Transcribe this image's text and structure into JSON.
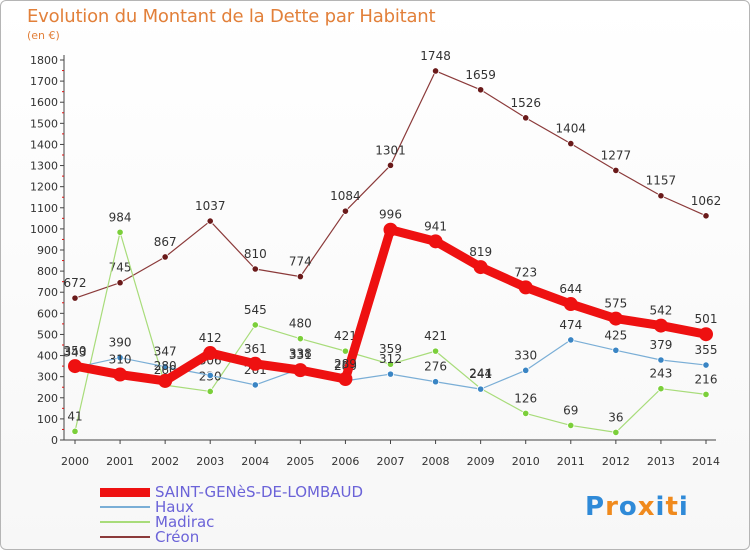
{
  "title": "Evolution du Montant de la Dette par Habitant",
  "unit": "(en €)",
  "logo": {
    "text": "Proxiti",
    "colors": [
      "#2f8ad8",
      "#f08a1d",
      "#2f8ad8",
      "#f08a1d",
      "#2f8ad8",
      "#f08a1d",
      "#2f8ad8"
    ]
  },
  "chart_data": {
    "type": "line",
    "x": [
      "2000",
      "2001",
      "2002",
      "2003",
      "2004",
      "2005",
      "2006",
      "2007",
      "2008",
      "2009",
      "2010",
      "2011",
      "2012",
      "2013",
      "2014"
    ],
    "ylim": [
      0,
      1800
    ],
    "yticks": [
      0,
      100,
      200,
      300,
      400,
      500,
      600,
      700,
      800,
      900,
      1000,
      1100,
      1200,
      1300,
      1400,
      1500,
      1600,
      1700,
      1800
    ],
    "grid": false,
    "legend_position": "bottom-left",
    "series": [
      {
        "name": "Créon",
        "color": "#8b3a3a",
        "marker": "#6a1a1a",
        "width": 1.2,
        "values": [
          672,
          745,
          867,
          1037,
          810,
          774,
          1084,
          1301,
          1748,
          1659,
          1526,
          1404,
          1277,
          1157,
          1062
        ]
      },
      {
        "name": "Madirac",
        "color": "#a8dc7a",
        "marker": "#7bcf3a",
        "width": 1.2,
        "values": [
          41,
          984,
          260,
          230,
          545,
          480,
          421,
          359,
          421,
          244,
          126,
          69,
          36,
          243,
          216
        ]
      },
      {
        "name": "Haux",
        "color": "#7aaed6",
        "marker": "#3a85c4",
        "width": 1.2,
        "values": [
          343,
          390,
          347,
          306,
          261,
          338,
          280,
          312,
          276,
          241,
          330,
          474,
          425,
          379,
          355
        ]
      },
      {
        "name": "SAINT-GENèS-DE-LOMBAUD",
        "color": "#ee1111",
        "marker": "#ee1111",
        "width": 9,
        "values": [
          350,
          310,
          280,
          412,
          361,
          331,
          289,
          996,
          941,
          819,
          723,
          644,
          575,
          542,
          501
        ]
      }
    ]
  },
  "legend": [
    {
      "label": "SAINT-GENèS-DE-LOMBAUD",
      "color": "#ee1111",
      "thick": true
    },
    {
      "label": "Haux",
      "color": "#7aaed6",
      "thick": false
    },
    {
      "label": "Madirac",
      "color": "#a8dc7a",
      "thick": false
    },
    {
      "label": "Créon",
      "color": "#8b3a3a",
      "thick": false
    }
  ]
}
